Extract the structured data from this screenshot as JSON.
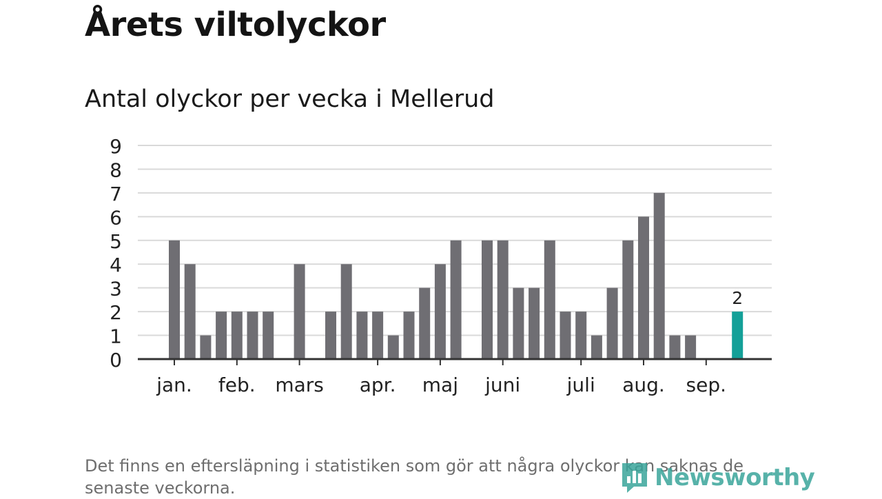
{
  "header": {
    "title": "Årets viltolyckor",
    "subtitle": "Antal olyckor per vecka i Mellerud"
  },
  "footnote": "Det finns en eftersläpning i statistiken som gör att några olyckor kan saknas de senaste veckorna.",
  "brand": {
    "name": "Newsworthy",
    "logo_icon": "bar-chart-bubble-icon"
  },
  "colors": {
    "bar": "#6f6e73",
    "highlight": "#14a098",
    "grid": "#d9d9d9",
    "axis": "#333333",
    "brand": "#3aa59b"
  },
  "chart_data": {
    "type": "bar",
    "title": "Antal olyckor per vecka i Mellerud",
    "xlabel": "",
    "ylabel": "",
    "ylim": [
      0,
      9
    ],
    "yticks": [
      0,
      1,
      2,
      3,
      4,
      5,
      6,
      7,
      8,
      9
    ],
    "grid": true,
    "month_labels": [
      {
        "label": "jan.",
        "week": 1
      },
      {
        "label": "feb.",
        "week": 5
      },
      {
        "label": "mars",
        "week": 9
      },
      {
        "label": "apr.",
        "week": 14
      },
      {
        "label": "maj",
        "week": 18
      },
      {
        "label": "juni",
        "week": 22
      },
      {
        "label": "juli",
        "week": 27
      },
      {
        "label": "aug.",
        "week": 31
      },
      {
        "label": "sep.",
        "week": 35
      }
    ],
    "weeks": [
      1,
      2,
      3,
      4,
      5,
      6,
      7,
      8,
      9,
      10,
      11,
      12,
      13,
      14,
      15,
      16,
      17,
      18,
      19,
      20,
      21,
      22,
      23,
      24,
      25,
      26,
      27,
      28,
      29,
      30,
      31,
      32,
      33,
      34,
      35,
      36,
      37
    ],
    "values": [
      5,
      4,
      1,
      2,
      2,
      2,
      2,
      0,
      4,
      0,
      2,
      4,
      2,
      2,
      1,
      2,
      3,
      4,
      5,
      0,
      5,
      5,
      3,
      3,
      5,
      2,
      2,
      1,
      3,
      5,
      6,
      7,
      1,
      1,
      0,
      0,
      2
    ],
    "highlight_index": 36,
    "highlight_label": "2"
  }
}
